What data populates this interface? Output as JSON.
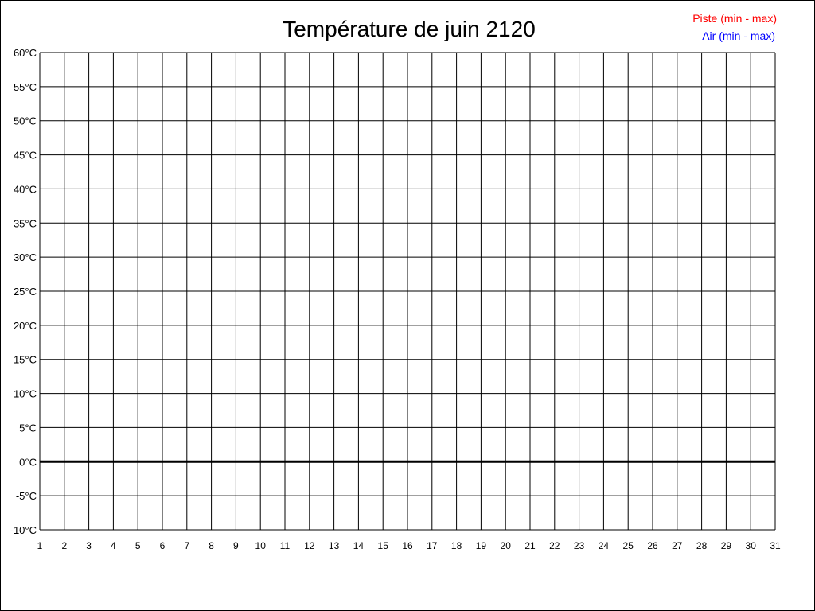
{
  "chart_data": {
    "type": "line",
    "title": "Température de juin 2120",
    "xlabel": "",
    "ylabel": "",
    "x_ticks": [
      "1",
      "2",
      "3",
      "4",
      "5",
      "6",
      "7",
      "8",
      "9",
      "10",
      "11",
      "12",
      "13",
      "14",
      "15",
      "16",
      "17",
      "18",
      "19",
      "20",
      "21",
      "22",
      "23",
      "24",
      "25",
      "26",
      "27",
      "28",
      "29",
      "30",
      "31"
    ],
    "y_ticks": [
      "60°C",
      "55°C",
      "50°C",
      "45°C",
      "40°C",
      "35°C",
      "30°C",
      "25°C",
      "20°C",
      "15°C",
      "10°C",
      "5°C",
      "0°C",
      "-5°C",
      "-10°C"
    ],
    "xlim": [
      1,
      31
    ],
    "ylim": [
      -10,
      60
    ],
    "grid": true,
    "legend_position": "top-right",
    "series": [
      {
        "name": "Piste (min - max)",
        "color": "#ff0000",
        "values": []
      },
      {
        "name": "Air (min - max)",
        "color": "#0000ff",
        "values": []
      }
    ]
  }
}
